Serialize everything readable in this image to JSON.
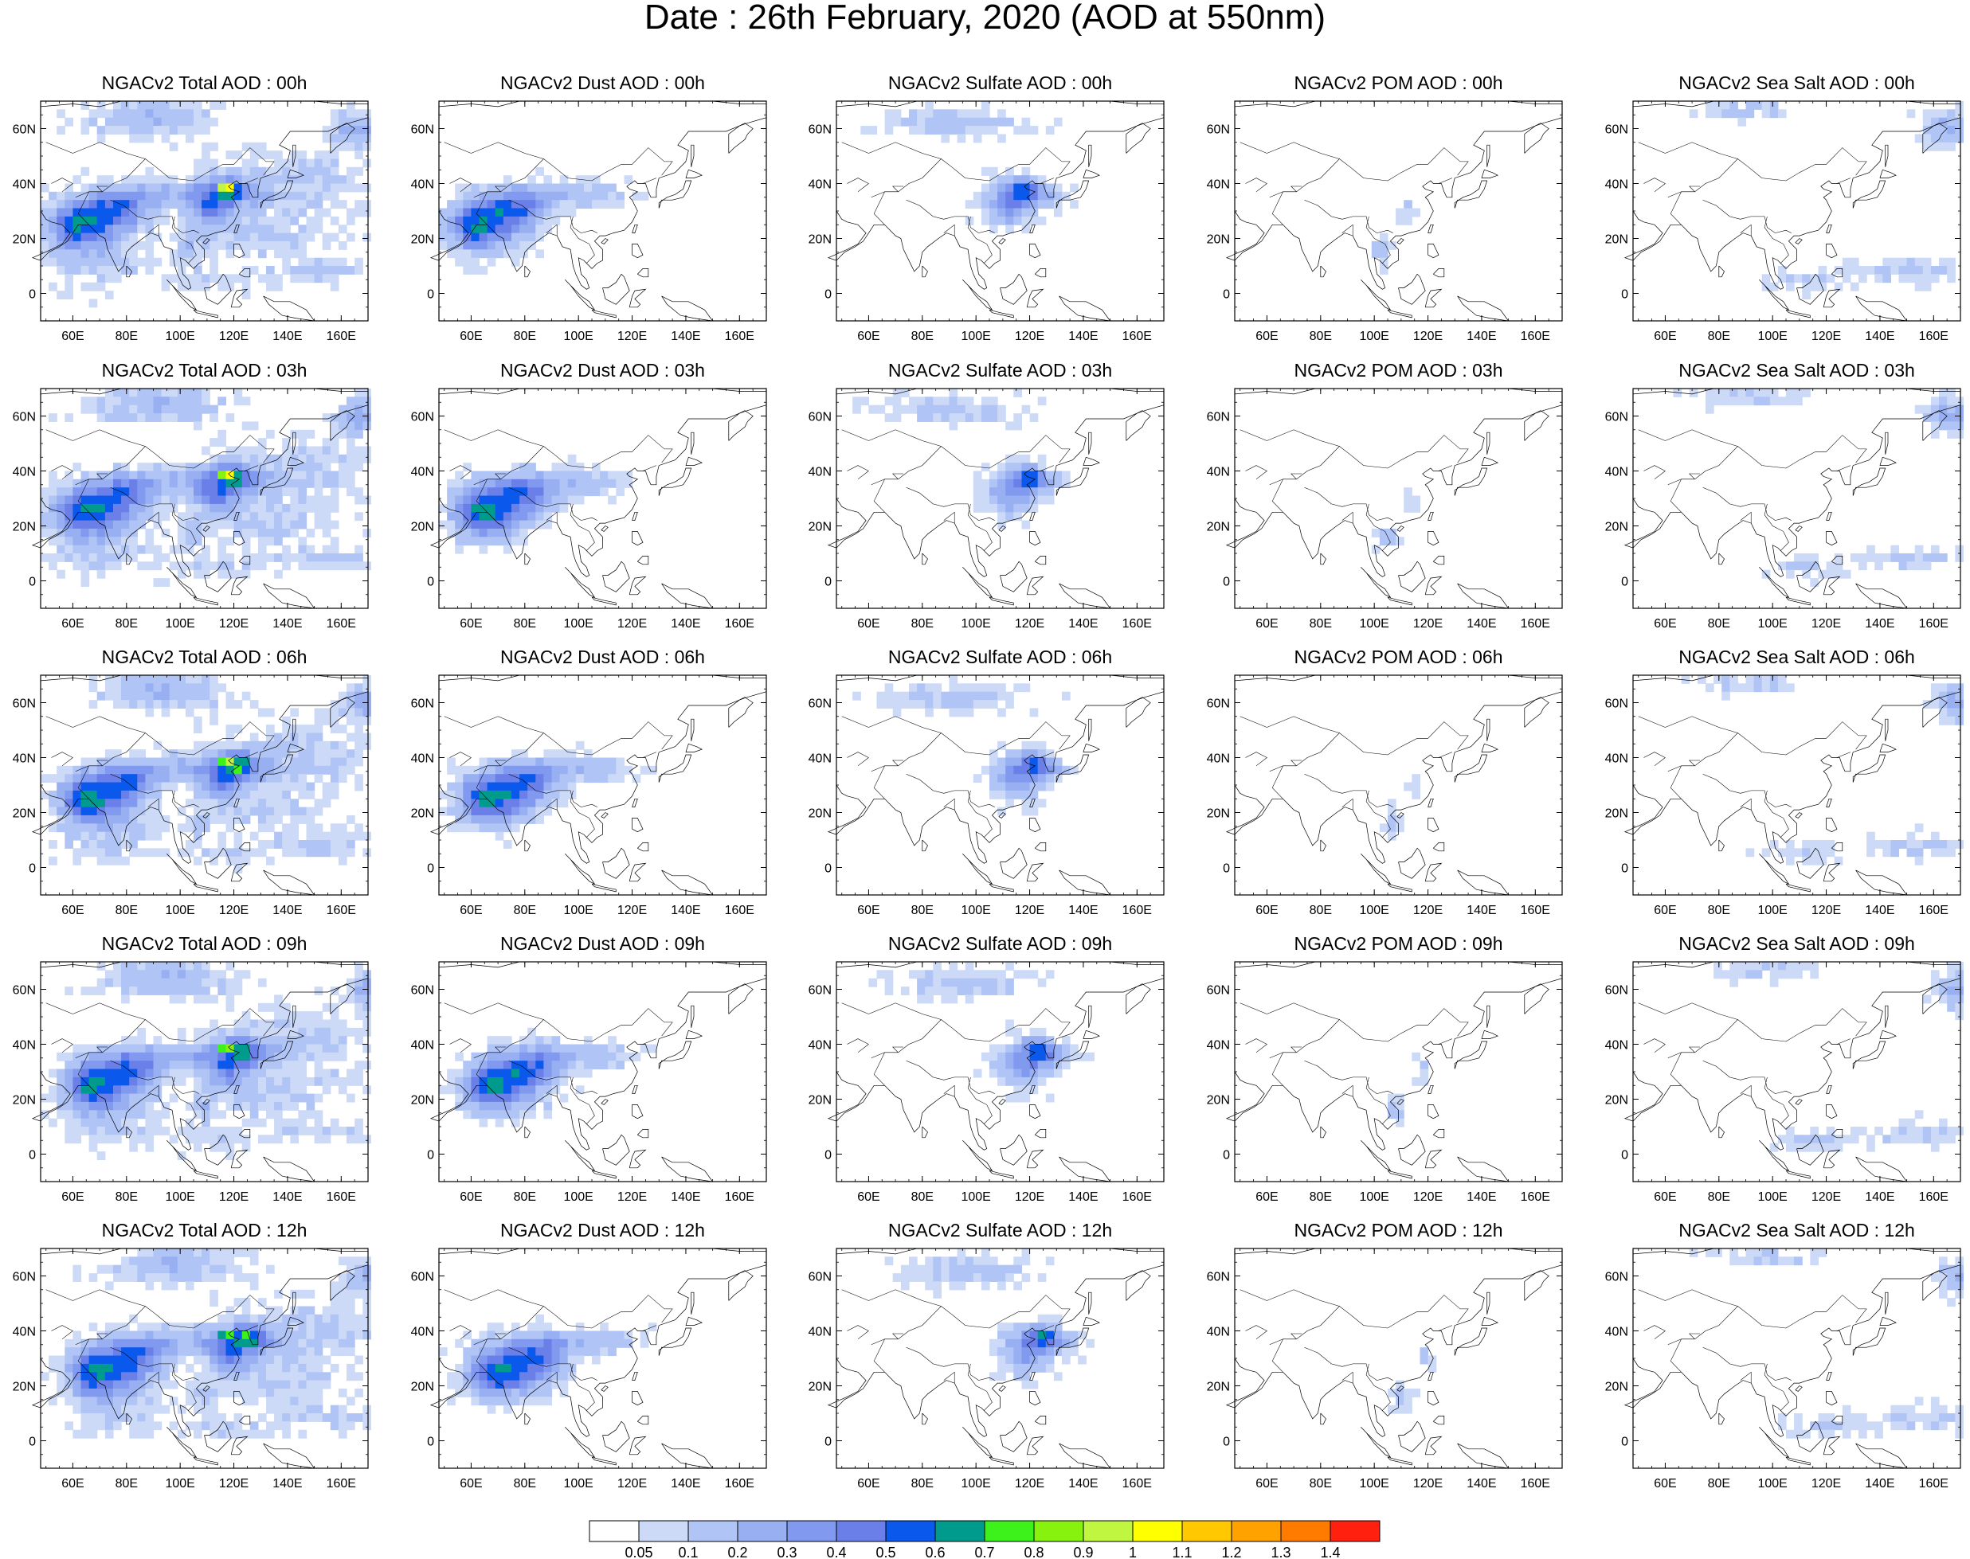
{
  "title": "Date : 26th February, 2020 (AOD at 550nm)",
  "panels": [
    [
      "NGACv2 Total AOD : 00h",
      "NGACv2 Dust AOD : 00h",
      "NGACv2 Sulfate AOD : 00h",
      "NGACv2 POM AOD : 00h",
      "NGACv2 Sea Salt AOD : 00h"
    ],
    [
      "NGACv2 Total AOD : 03h",
      "NGACv2 Dust AOD : 03h",
      "NGACv2 Sulfate AOD : 03h",
      "NGACv2 POM AOD : 03h",
      "NGACv2 Sea Salt AOD : 03h"
    ],
    [
      "NGACv2 Total AOD : 06h",
      "NGACv2 Dust AOD : 06h",
      "NGACv2 Sulfate AOD : 06h",
      "NGACv2 POM AOD : 06h",
      "NGACv2 Sea Salt AOD : 06h"
    ],
    [
      "NGACv2 Total AOD : 09h",
      "NGACv2 Dust AOD : 09h",
      "NGACv2 Sulfate AOD : 09h",
      "NGACv2 POM AOD : 09h",
      "NGACv2 Sea Salt  AOD : 09h"
    ],
    [
      "NGACv2 Total AOD  : 12h",
      "NGACv2 Dust AOD : 12h",
      "NGACv2 Sulfate AOD : 12h",
      "NGACv2 POM  AOD : 12h",
      "NGACv2 Sea Salt  AOD : 12h"
    ]
  ],
  "map_extent": {
    "lon_range": [
      48,
      170
    ],
    "lat_range": [
      -10,
      70
    ]
  },
  "lon_ticks": [
    {
      "value": 60,
      "label": "60E"
    },
    {
      "value": 80,
      "label": "80E"
    },
    {
      "value": 100,
      "label": "100E"
    },
    {
      "value": 120,
      "label": "120E"
    },
    {
      "value": 140,
      "label": "140E"
    },
    {
      "value": 160,
      "label": "160E"
    }
  ],
  "lat_ticks": [
    {
      "value": 60,
      "label": "60N"
    },
    {
      "value": 40,
      "label": "40N"
    },
    {
      "value": 20,
      "label": "20N"
    },
    {
      "value": 0,
      "label": "0"
    }
  ],
  "colorbar": {
    "colors": [
      "#ffffff",
      "#ccdaf7",
      "#b0c4f5",
      "#98b0f2",
      "#8199ef",
      "#6a80e8",
      "#0a58ec",
      "#009b8c",
      "#3df21a",
      "#87f20d",
      "#c0f540",
      "#ffff00",
      "#ffc800",
      "#ffa200",
      "#ff7b00",
      "#ff2010"
    ],
    "labels": [
      "0.05",
      "0.1",
      "0.2",
      "0.3",
      "0.4",
      "0.5",
      "0.6",
      "0.7",
      "0.8",
      "0.9",
      "1",
      "1.1",
      "1.2",
      "1.3",
      "1.4"
    ]
  }
}
